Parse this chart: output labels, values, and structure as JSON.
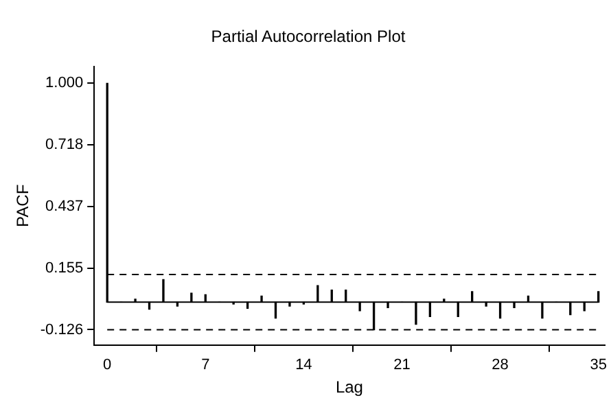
{
  "chart_data": {
    "type": "bar",
    "title": "Partial Autocorrelation Plot",
    "xlabel": "Lag",
    "ylabel": "PACF",
    "x": [
      0,
      1,
      2,
      3,
      4,
      5,
      6,
      7,
      8,
      9,
      10,
      11,
      12,
      13,
      14,
      15,
      16,
      17,
      18,
      19,
      20,
      21,
      22,
      23,
      24,
      25,
      26,
      27,
      28,
      29,
      30,
      31,
      32,
      33,
      34,
      35
    ],
    "values": [
      1.0,
      0,
      0.014,
      -0.032,
      0.103,
      -0.018,
      0.041,
      0.034,
      0,
      -0.009,
      -0.028,
      0.028,
      -0.073,
      -0.018,
      -0.009,
      0.076,
      0.055,
      0.055,
      -0.039,
      -0.126,
      -0.025,
      0,
      -0.101,
      -0.066,
      0.014,
      -0.066,
      0.048,
      -0.018,
      -0.073,
      -0.025,
      0.028,
      -0.073,
      0,
      -0.057,
      -0.039,
      0.048
    ],
    "color": "#000000",
    "xlim": [
      -0.93,
      35.44
    ],
    "xticks": [
      0,
      7,
      14,
      21,
      28,
      35
    ],
    "ylim": [
      -0.196,
      1.077
    ],
    "yticks": [
      {
        "value": 1,
        "label": "1.000"
      },
      0.718,
      0.437,
      0.155,
      -0.126
    ],
    "ref_lines": [
      {
        "axis": "y",
        "value": 0,
        "line_style": "solid",
        "color": "#000000"
      },
      {
        "axis": "y",
        "value": 0.126,
        "line_style": "dashed",
        "color": "#000000"
      },
      {
        "axis": "y",
        "value": -0.126,
        "line_style": "dashed",
        "color": "#000000"
      }
    ],
    "grid": false,
    "legend": false
  }
}
